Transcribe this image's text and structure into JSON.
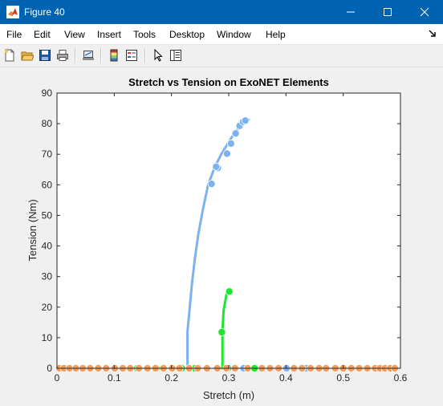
{
  "window": {
    "title": "Figure 40",
    "minimize_icon": "minimize-icon",
    "maximize_icon": "maximize-icon",
    "close_icon": "close-icon"
  },
  "menu": {
    "items": [
      "File",
      "Edit",
      "View",
      "Insert",
      "Tools",
      "Desktop",
      "Window",
      "Help"
    ]
  },
  "toolbar": {
    "icons": [
      "new-figure-icon",
      "open-file-icon",
      "save-figure-icon",
      "print-figure-icon",
      "link-plot-icon",
      "insert-colorbar-icon",
      "insert-legend-icon",
      "edit-plot-icon",
      "property-inspector-icon"
    ]
  },
  "colors": {
    "blue": "#7eb2ee",
    "green": "#1ce62e",
    "orange": "#f29c5d"
  },
  "chart_data": {
    "type": "line",
    "title": "Stretch vs  Tension on ExoNET Elements",
    "xlabel": "Stretch (m)",
    "ylabel": "Tension (Nm)",
    "xlim": [
      0,
      0.6
    ],
    "ylim": [
      0,
      90
    ],
    "xticks": [
      "0",
      "0.1",
      "0.2",
      "0.3",
      "0.4",
      "0.5",
      "0.6"
    ],
    "yticks": [
      "0",
      "10",
      "20",
      "30",
      "40",
      "50",
      "60",
      "70",
      "80",
      "90"
    ],
    "grid": false,
    "series": [
      {
        "color": "#7eb2ee",
        "line": [
          [
            0.228,
            0
          ],
          [
            0.228,
            12
          ],
          [
            0.232,
            20
          ],
          [
            0.236,
            28
          ],
          [
            0.241,
            36
          ],
          [
            0.247,
            44
          ],
          [
            0.255,
            52
          ],
          [
            0.264,
            60
          ],
          [
            0.276,
            66
          ],
          [
            0.287,
            70
          ],
          [
            0.3,
            74
          ],
          [
            0.312,
            77.5
          ],
          [
            0.325,
            80
          ],
          [
            0.335,
            81.3
          ]
        ],
        "points": [
          [
            0.297,
            70.2
          ],
          [
            0.304,
            73.5
          ],
          [
            0.312,
            76.8
          ],
          [
            0.319,
            79.3
          ],
          [
            0.325,
            80.6
          ],
          [
            0.329,
            81
          ],
          [
            0.281,
            65.5
          ],
          [
            0.278,
            65.9
          ],
          [
            0.27,
            60.3
          ],
          [
            0.401,
            0
          ],
          [
            0.436,
            0
          ],
          [
            0.326,
            0
          ]
        ]
      },
      {
        "color": "#1ce62e",
        "line": [
          [
            0.289,
            0
          ],
          [
            0.289,
            12
          ],
          [
            0.291,
            19
          ],
          [
            0.297,
            25
          ]
        ],
        "points": [
          [
            0.288,
            11.8
          ],
          [
            0.301,
            25.1
          ],
          [
            0.14,
            0
          ],
          [
            0.157,
            0
          ],
          [
            0.174,
            0
          ],
          [
            0.2,
            0
          ],
          [
            0.218,
            0
          ],
          [
            0.241,
            0
          ],
          [
            0.299,
            0
          ],
          [
            0.312,
            0
          ],
          [
            0.345,
            0
          ]
        ]
      },
      {
        "color": "#f29c5d",
        "line": [],
        "points": [
          [
            0.004,
            0
          ],
          [
            0.012,
            0
          ],
          [
            0.022,
            0
          ],
          [
            0.033,
            0
          ],
          [
            0.045,
            0
          ],
          [
            0.058,
            0
          ],
          [
            0.072,
            0
          ],
          [
            0.086,
            0
          ],
          [
            0.101,
            0
          ],
          [
            0.115,
            0
          ],
          [
            0.128,
            0
          ],
          [
            0.143,
            0
          ],
          [
            0.158,
            0
          ],
          [
            0.172,
            0
          ],
          [
            0.186,
            0
          ],
          [
            0.201,
            0
          ],
          [
            0.214,
            0
          ],
          [
            0.231,
            0
          ],
          [
            0.246,
            0
          ],
          [
            0.262,
            0
          ],
          [
            0.28,
            0
          ],
          [
            0.296,
            0
          ],
          [
            0.311,
            0
          ],
          [
            0.333,
            0
          ],
          [
            0.358,
            0
          ],
          [
            0.372,
            0
          ],
          [
            0.387,
            0
          ],
          [
            0.414,
            0
          ],
          [
            0.428,
            0
          ],
          [
            0.443,
            0
          ],
          [
            0.458,
            0
          ],
          [
            0.47,
            0
          ],
          [
            0.486,
            0
          ],
          [
            0.5,
            0
          ],
          [
            0.514,
            0
          ],
          [
            0.528,
            0
          ],
          [
            0.542,
            0
          ],
          [
            0.556,
            0
          ],
          [
            0.564,
            0
          ],
          [
            0.573,
            0
          ],
          [
            0.582,
            0
          ],
          [
            0.59,
            0
          ]
        ]
      }
    ]
  }
}
